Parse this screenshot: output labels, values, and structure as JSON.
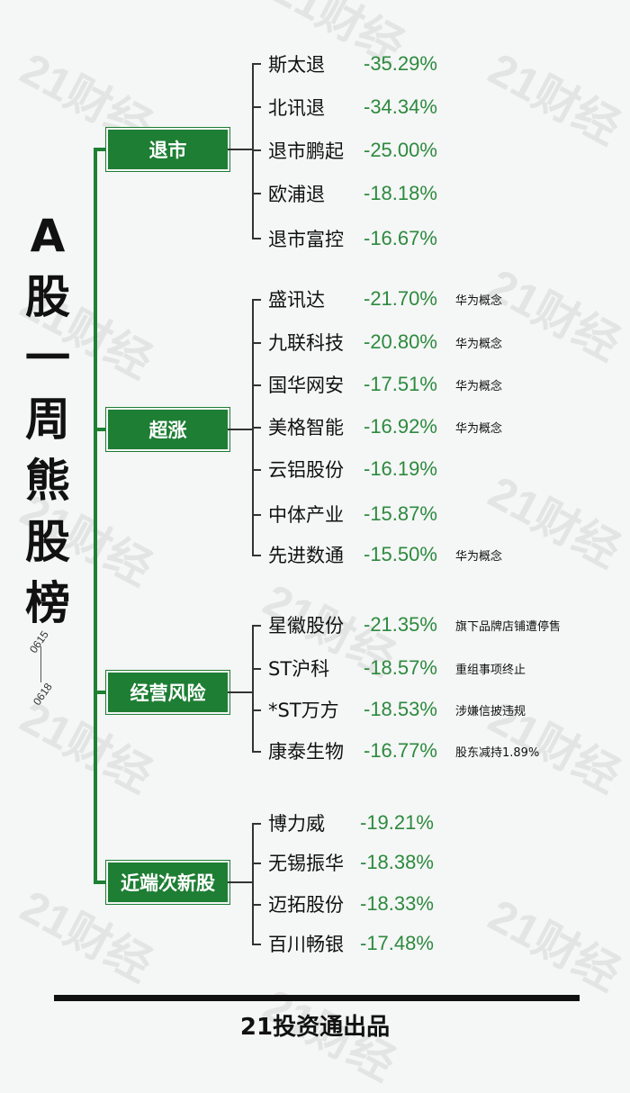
{
  "title_chars": [
    "A",
    "股",
    "一",
    "周",
    "熊",
    "股",
    "榜"
  ],
  "date_start": "0615",
  "date_end": "0618",
  "watermark": "21财经",
  "colors": {
    "brand_green": "#1e7e34",
    "pct_green": "#2d8a3e"
  },
  "categories": [
    {
      "label": "退市",
      "items": [
        {
          "name": "斯太退",
          "pct": "-35.29%",
          "note": ""
        },
        {
          "name": "北讯退",
          "pct": "-34.34%",
          "note": ""
        },
        {
          "name": "退市鹏起",
          "pct": "-25.00%",
          "note": ""
        },
        {
          "name": "欧浦退",
          "pct": "-18.18%",
          "note": ""
        },
        {
          "name": "退市富控",
          "pct": "-16.67%",
          "note": ""
        }
      ]
    },
    {
      "label": "超涨",
      "items": [
        {
          "name": "盛讯达",
          "pct": "-21.70%",
          "note": "华为概念"
        },
        {
          "name": "九联科技",
          "pct": "-20.80%",
          "note": "华为概念"
        },
        {
          "name": "国华网安",
          "pct": "-17.51%",
          "note": "华为概念"
        },
        {
          "name": "美格智能",
          "pct": "-16.92%",
          "note": "华为概念"
        },
        {
          "name": "云铝股份",
          "pct": "-16.19%",
          "note": ""
        },
        {
          "name": "中体产业",
          "pct": "-15.87%",
          "note": ""
        },
        {
          "name": "先进数通",
          "pct": "-15.50%",
          "note": "华为概念"
        }
      ]
    },
    {
      "label": "经营风险",
      "items": [
        {
          "name": "星徽股份",
          "pct": "-21.35%",
          "note": "旗下品牌店铺遭停售"
        },
        {
          "name": "ST沪科",
          "pct": "-18.57%",
          "note": "重组事项终止"
        },
        {
          "name": "*ST万方",
          "pct": "-18.53%",
          "note": "涉嫌信披违规"
        },
        {
          "name": "康泰生物",
          "pct": "-16.77%",
          "note": "股东减持1.89%"
        }
      ]
    },
    {
      "label": "近端次新股",
      "items": [
        {
          "name": "博力威",
          "pct": "-19.21%",
          "note": ""
        },
        {
          "name": "无锡振华",
          "pct": "-18.38%",
          "note": ""
        },
        {
          "name": "迈拓股份",
          "pct": "-18.33%",
          "note": ""
        },
        {
          "name": "百川畅银",
          "pct": "-17.48%",
          "note": ""
        }
      ]
    }
  ],
  "footer": "21投资通出品"
}
